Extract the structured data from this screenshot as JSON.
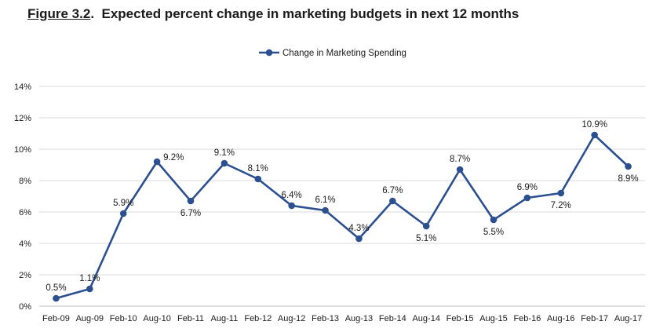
{
  "figure": {
    "number": "Figure 3.2",
    "caption": "Expected percent change in marketing budgets in next 12 months"
  },
  "chart_data": {
    "type": "line",
    "title": "Figure 3.2. Expected percent change in marketing budgets in next 12 months",
    "xlabel": "",
    "ylabel": "",
    "categories": [
      "Feb-09",
      "Aug-09",
      "Feb-10",
      "Aug-10",
      "Feb-11",
      "Aug-11",
      "Feb-12",
      "Aug-12",
      "Feb-13",
      "Aug-13",
      "Feb-14",
      "Aug-14",
      "Feb-15",
      "Aug-15",
      "Feb-16",
      "Aug-16",
      "Feb-17",
      "Aug-17"
    ],
    "series": [
      {
        "name": "Change in Marketing Spending",
        "values": [
          0.5,
          1.1,
          5.9,
          9.2,
          6.7,
          9.1,
          8.1,
          6.4,
          6.1,
          4.3,
          6.7,
          5.1,
          8.7,
          5.5,
          6.9,
          7.2,
          10.9,
          8.9
        ],
        "labels": [
          "0.5%",
          "1.1%",
          "5.9%",
          "9.2%",
          "6.7%",
          "9.1%",
          "8.1%",
          "6.4%",
          "6.1%",
          "4.3%",
          "6.7%",
          "5.1%",
          "8.7%",
          "5.5%",
          "6.9%",
          "7.2%",
          "10.9%",
          "8.9%"
        ],
        "label_positions": [
          "above",
          "above",
          "above",
          "right",
          "below",
          "above",
          "above",
          "above",
          "above",
          "above",
          "above",
          "below",
          "above",
          "below",
          "above",
          "below",
          "above",
          "below"
        ],
        "color": "#2b4f8f"
      }
    ],
    "y_ticks": [
      "0%",
      "2%",
      "4%",
      "6%",
      "8%",
      "10%",
      "12%",
      "14%"
    ],
    "ylim": [
      0,
      14
    ],
    "grid": true,
    "legend": "top-center"
  }
}
